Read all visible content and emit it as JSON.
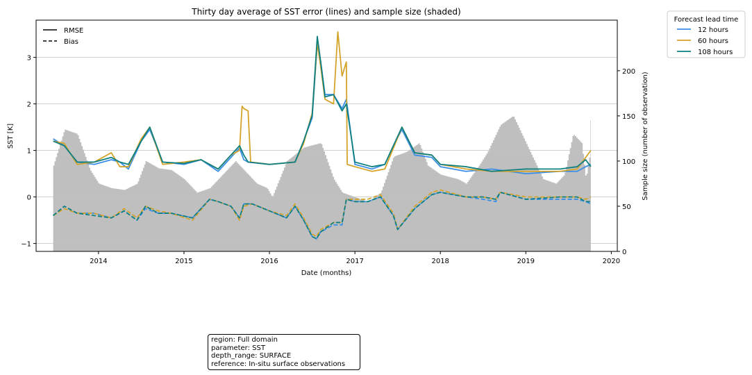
{
  "chart_data": {
    "type": "line",
    "title": "Thirty day average of SST error (lines) and sample size (shaded)",
    "xlabel": "Date (months)",
    "ylabel": "SST [K]",
    "y2label": "Sample size (number of observation)",
    "xlim": [
      2013.27,
      2020.07
    ],
    "ylim": [
      -1.17,
      3.8
    ],
    "y2lim": [
      0,
      256
    ],
    "x_ticks": [
      "2014",
      "2015",
      "2016",
      "2017",
      "2018",
      "2019",
      "2020"
    ],
    "y_ticks": [
      "3",
      "2",
      "1",
      "0",
      "−1"
    ],
    "y2_ticks": [
      "200",
      "150",
      "100",
      "50",
      "0"
    ],
    "grid": "horizontal",
    "style_legend": {
      "placement": "top-left",
      "entries": [
        {
          "label": "RMSE",
          "dash": "solid"
        },
        {
          "label": "Bias",
          "dash": "dashed"
        }
      ]
    },
    "legend": {
      "title": "Forecast lead time",
      "placement": "outside-top-right",
      "entries": [
        "12 hours",
        "60 hours",
        "108 hours"
      ]
    },
    "colors": {
      "12 hours": "#3a8ee6",
      "60 hours": "#d4a32a",
      "108 hours": "#0e7f7f",
      "sample_size": "#bfbfbf",
      "grid": "#c0c0c0"
    },
    "sample_size": {
      "x": [
        2013.47,
        2013.6,
        2013.75,
        2013.9,
        2014.0,
        2014.15,
        2014.3,
        2014.45,
        2014.55,
        2014.7,
        2014.85,
        2015.0,
        2015.15,
        2015.3,
        2015.5,
        2015.6,
        2015.75,
        2015.85,
        2015.97,
        2016.03,
        2016.2,
        2016.4,
        2016.6,
        2016.75,
        2016.85,
        2017.0,
        2017.15,
        2017.3,
        2017.45,
        2017.6,
        2017.75,
        2017.85,
        2018.0,
        2018.2,
        2018.3,
        2018.45,
        2018.55,
        2018.7,
        2018.85,
        2019.0,
        2019.2,
        2019.35,
        2019.45,
        2019.55,
        2019.65,
        2019.7,
        2019.75,
        2019.76
      ],
      "values": [
        95,
        135,
        130,
        90,
        75,
        70,
        68,
        75,
        100,
        92,
        90,
        80,
        65,
        70,
        90,
        100,
        85,
        75,
        70,
        60,
        100,
        115,
        120,
        80,
        65,
        60,
        55,
        65,
        105,
        110,
        120,
        95,
        85,
        80,
        75,
        95,
        110,
        140,
        150,
        120,
        80,
        75,
        85,
        130,
        120,
        80,
        110,
        180
      ]
    },
    "series": [
      {
        "name": "12 hours",
        "metric": "RMSE",
        "x": [
          2013.47,
          2013.6,
          2013.75,
          2013.95,
          2014.15,
          2014.25,
          2014.35,
          2014.5,
          2014.6,
          2014.75,
          2015.0,
          2015.2,
          2015.4,
          2015.55,
          2015.65,
          2015.7,
          2015.75,
          2016.0,
          2016.3,
          2016.4,
          2016.5,
          2016.56,
          2016.6,
          2016.65,
          2016.75,
          2016.85,
          2016.9,
          2017.0,
          2017.2,
          2017.35,
          2017.45,
          2017.55,
          2017.7,
          2017.9,
          2018.0,
          2018.3,
          2018.6,
          2019.0,
          2019.4,
          2019.6,
          2019.7,
          2019.76
        ],
        "values": [
          1.25,
          1.1,
          0.75,
          0.7,
          0.8,
          0.75,
          0.6,
          1.2,
          1.45,
          0.75,
          0.7,
          0.8,
          0.55,
          0.85,
          1.05,
          0.8,
          0.75,
          0.7,
          0.75,
          1.2,
          1.7,
          3.3,
          2.9,
          2.2,
          2.2,
          1.9,
          2.1,
          0.7,
          0.6,
          0.7,
          1.1,
          1.45,
          0.9,
          0.85,
          0.65,
          0.55,
          0.6,
          0.5,
          0.55,
          0.55,
          0.65,
          0.7
        ]
      },
      {
        "name": "60 hours",
        "metric": "RMSE",
        "x": [
          2013.47,
          2013.6,
          2013.75,
          2013.95,
          2014.15,
          2014.25,
          2014.35,
          2014.5,
          2014.6,
          2014.75,
          2015.0,
          2015.2,
          2015.4,
          2015.55,
          2015.65,
          2015.68,
          2015.7,
          2015.75,
          2015.78,
          2016.0,
          2016.3,
          2016.4,
          2016.5,
          2016.56,
          2016.6,
          2016.65,
          2016.75,
          2016.8,
          2016.85,
          2016.9,
          2016.91,
          2017.0,
          2017.2,
          2017.35,
          2017.45,
          2017.55,
          2017.7,
          2017.9,
          2018.0,
          2018.3,
          2018.6,
          2019.0,
          2019.4,
          2019.6,
          2019.7,
          2019.76
        ],
        "values": [
          1.2,
          1.15,
          0.7,
          0.75,
          0.95,
          0.65,
          0.65,
          1.25,
          1.5,
          0.7,
          0.75,
          0.8,
          0.6,
          0.9,
          1.0,
          1.95,
          1.9,
          1.85,
          0.75,
          0.7,
          0.75,
          1.15,
          1.8,
          3.3,
          2.8,
          2.1,
          2.0,
          3.55,
          2.6,
          2.9,
          0.7,
          0.65,
          0.55,
          0.6,
          1.05,
          1.5,
          0.95,
          0.9,
          0.7,
          0.6,
          0.55,
          0.55,
          0.55,
          0.6,
          0.85,
          1.0
        ]
      },
      {
        "name": "108 hours",
        "metric": "RMSE",
        "x": [
          2013.47,
          2013.6,
          2013.75,
          2013.95,
          2014.15,
          2014.25,
          2014.35,
          2014.5,
          2014.6,
          2014.75,
          2015.0,
          2015.2,
          2015.4,
          2015.55,
          2015.65,
          2015.7,
          2015.75,
          2016.0,
          2016.3,
          2016.4,
          2016.5,
          2016.56,
          2016.6,
          2016.65,
          2016.75,
          2016.85,
          2016.9,
          2017.0,
          2017.2,
          2017.35,
          2017.45,
          2017.55,
          2017.7,
          2017.9,
          2018.0,
          2018.3,
          2018.6,
          2019.0,
          2019.4,
          2019.6,
          2019.7,
          2019.76
        ],
        "values": [
          1.2,
          1.1,
          0.75,
          0.75,
          0.85,
          0.75,
          0.7,
          1.2,
          1.5,
          0.75,
          0.72,
          0.8,
          0.6,
          0.9,
          1.1,
          0.9,
          0.75,
          0.7,
          0.75,
          1.2,
          1.75,
          3.45,
          2.9,
          2.15,
          2.2,
          1.85,
          2.0,
          0.75,
          0.65,
          0.7,
          1.1,
          1.5,
          0.95,
          0.9,
          0.7,
          0.65,
          0.55,
          0.6,
          0.6,
          0.65,
          0.8,
          0.65
        ]
      },
      {
        "name": "12 hours",
        "metric": "Bias",
        "x": [
          2013.47,
          2013.6,
          2013.75,
          2013.95,
          2014.15,
          2014.3,
          2014.45,
          2014.55,
          2014.7,
          2014.85,
          2015.1,
          2015.3,
          2015.4,
          2015.55,
          2015.65,
          2015.7,
          2015.8,
          2016.0,
          2016.2,
          2016.3,
          2016.4,
          2016.5,
          2016.55,
          2016.6,
          2016.75,
          2016.85,
          2016.9,
          2017.0,
          2017.15,
          2017.3,
          2017.45,
          2017.5,
          2017.7,
          2017.9,
          2018.0,
          2018.3,
          2018.5,
          2018.65,
          2018.7,
          2019.0,
          2019.4,
          2019.6,
          2019.7,
          2019.76
        ],
        "values": [
          -0.4,
          -0.2,
          -0.35,
          -0.35,
          -0.45,
          -0.3,
          -0.5,
          -0.25,
          -0.35,
          -0.35,
          -0.45,
          -0.05,
          -0.1,
          -0.2,
          -0.45,
          -0.15,
          -0.15,
          -0.3,
          -0.45,
          -0.2,
          -0.5,
          -0.85,
          -0.9,
          -0.75,
          -0.6,
          -0.6,
          -0.05,
          -0.1,
          -0.1,
          0.0,
          -0.4,
          -0.7,
          -0.25,
          0.05,
          0.1,
          0.0,
          -0.05,
          -0.1,
          0.1,
          -0.05,
          -0.05,
          -0.05,
          -0.1,
          -0.15
        ]
      },
      {
        "name": "60 hours",
        "metric": "Bias",
        "x": [
          2013.47,
          2013.6,
          2013.75,
          2013.95,
          2014.15,
          2014.3,
          2014.45,
          2014.55,
          2014.7,
          2014.85,
          2015.1,
          2015.3,
          2015.4,
          2015.55,
          2015.65,
          2015.7,
          2015.8,
          2016.0,
          2016.2,
          2016.3,
          2016.4,
          2016.5,
          2016.55,
          2016.6,
          2016.75,
          2016.85,
          2016.9,
          2017.0,
          2017.15,
          2017.3,
          2017.45,
          2017.5,
          2017.7,
          2017.9,
          2018.0,
          2018.3,
          2018.5,
          2018.65,
          2018.7,
          2019.0,
          2019.4,
          2019.6,
          2019.7,
          2019.76
        ],
        "values": [
          -0.4,
          -0.25,
          -0.35,
          -0.35,
          -0.45,
          -0.25,
          -0.45,
          -0.2,
          -0.3,
          -0.35,
          -0.5,
          -0.05,
          -0.1,
          -0.2,
          -0.5,
          -0.2,
          -0.15,
          -0.3,
          -0.4,
          -0.15,
          -0.45,
          -0.8,
          -0.85,
          -0.7,
          -0.55,
          -0.55,
          -0.05,
          -0.05,
          -0.05,
          0.05,
          -0.35,
          -0.7,
          -0.2,
          0.1,
          0.15,
          0.0,
          0.0,
          -0.05,
          0.1,
          0.0,
          0.0,
          0.0,
          -0.05,
          0.0
        ]
      },
      {
        "name": "108 hours",
        "metric": "Bias",
        "x": [
          2013.47,
          2013.6,
          2013.75,
          2013.95,
          2014.15,
          2014.3,
          2014.45,
          2014.55,
          2014.7,
          2014.85,
          2015.1,
          2015.3,
          2015.4,
          2015.55,
          2015.65,
          2015.7,
          2015.8,
          2016.0,
          2016.2,
          2016.3,
          2016.4,
          2016.5,
          2016.55,
          2016.6,
          2016.75,
          2016.85,
          2016.9,
          2017.0,
          2017.15,
          2017.3,
          2017.45,
          2017.5,
          2017.7,
          2017.9,
          2018.0,
          2018.3,
          2018.5,
          2018.65,
          2018.7,
          2019.0,
          2019.4,
          2019.6,
          2019.7,
          2019.76
        ],
        "values": [
          -0.4,
          -0.2,
          -0.35,
          -0.4,
          -0.45,
          -0.3,
          -0.5,
          -0.2,
          -0.35,
          -0.35,
          -0.45,
          -0.05,
          -0.1,
          -0.2,
          -0.45,
          -0.15,
          -0.15,
          -0.3,
          -0.45,
          -0.2,
          -0.5,
          -0.85,
          -0.9,
          -0.75,
          -0.55,
          -0.55,
          -0.05,
          -0.1,
          -0.1,
          0.0,
          -0.4,
          -0.7,
          -0.25,
          0.05,
          0.1,
          0.0,
          0.0,
          -0.05,
          0.1,
          -0.05,
          0.0,
          0.0,
          -0.1,
          -0.1
        ]
      }
    ]
  },
  "info_box": {
    "lines": [
      "region: Full domain",
      "parameter: SST",
      "depth_range: SURFACE",
      "reference: In-situ surface observations"
    ]
  }
}
